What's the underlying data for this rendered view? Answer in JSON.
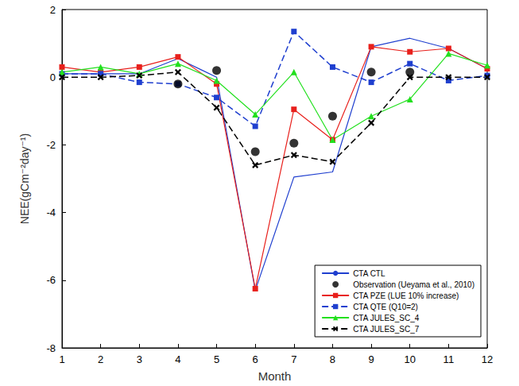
{
  "chart_data": {
    "type": "line",
    "x_label": "Month",
    "y_label": "NEE(gCm⁻²day⁻¹)",
    "x": [
      1,
      2,
      3,
      4,
      5,
      6,
      7,
      8,
      9,
      10,
      11,
      12
    ],
    "xlim": [
      1,
      12
    ],
    "xticks": [
      1,
      2,
      3,
      4,
      5,
      6,
      7,
      8,
      9,
      10,
      11,
      12
    ],
    "ylim": [
      -8,
      2
    ],
    "yticks": [
      -8,
      -6,
      -4,
      -2,
      0,
      2
    ],
    "grid": false,
    "legend": "lower right",
    "series": [
      {
        "name": "CTA CTL",
        "type": "line",
        "color": "#1f3fcf",
        "marker": "none",
        "line_style": "solid",
        "values": [
          0.1,
          0.1,
          0.1,
          0.55,
          0.0,
          -6.3,
          -2.95,
          -2.8,
          0.9,
          1.15,
          0.85,
          0.25
        ]
      },
      {
        "name": "Observation (Ueyama et al., 2010)",
        "type": "scatter",
        "color": "#000000",
        "marker": "circle",
        "values": [
          null,
          null,
          null,
          -0.2,
          0.2,
          -2.2,
          -1.95,
          -1.15,
          0.15,
          0.15,
          null,
          null
        ]
      },
      {
        "name": "CTA PZE (LUE 10% increase)",
        "type": "line",
        "color": "#e8201c",
        "marker": "square",
        "line_style": "solid",
        "values": [
          0.3,
          0.15,
          0.3,
          0.6,
          -0.2,
          -6.25,
          -0.95,
          -1.85,
          0.9,
          0.75,
          0.85,
          0.25
        ]
      },
      {
        "name": "CTA QTE (Q10=2)",
        "type": "line",
        "color": "#1f3fcf",
        "marker": "square",
        "line_style": "dashed",
        "values": [
          0.1,
          0.1,
          -0.15,
          -0.2,
          -0.6,
          -1.45,
          1.35,
          0.3,
          -0.15,
          0.4,
          -0.1,
          0.05
        ]
      },
      {
        "name": "CTA JULES_SC_4",
        "type": "line",
        "color": "#22e01e",
        "marker": "triangle",
        "line_style": "solid",
        "values": [
          0.15,
          0.3,
          0.1,
          0.4,
          -0.1,
          -1.1,
          0.15,
          -1.85,
          -1.15,
          -0.65,
          0.7,
          0.35
        ]
      },
      {
        "name": "CTA JULES_SC_7",
        "type": "line",
        "color": "#000000",
        "marker": "x",
        "line_style": "dashed",
        "values": [
          0.0,
          0.0,
          0.05,
          0.15,
          -0.9,
          -2.6,
          -2.3,
          -2.5,
          -1.35,
          0.0,
          0.0,
          0.0
        ]
      }
    ]
  }
}
